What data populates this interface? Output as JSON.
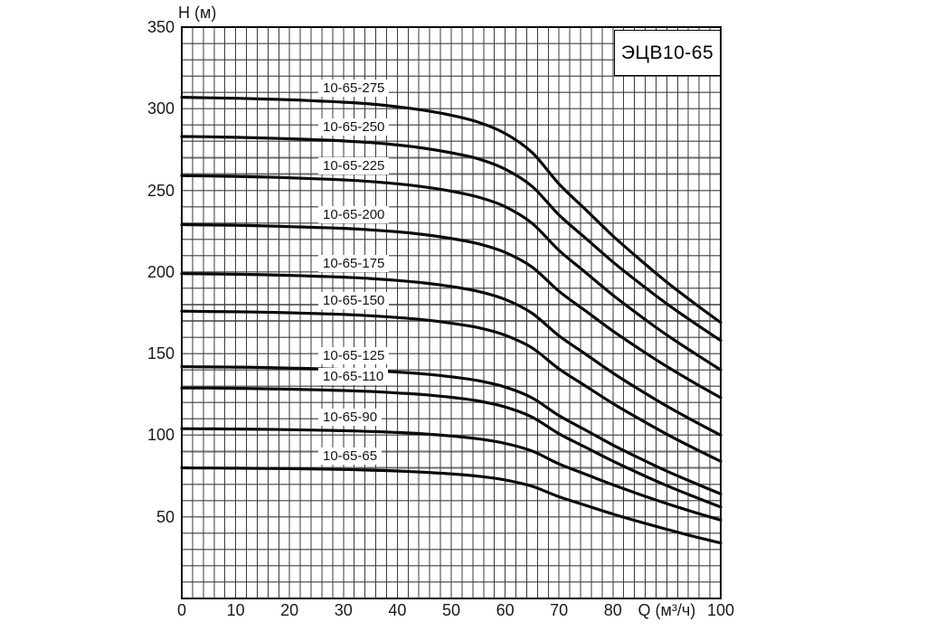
{
  "chart_data": {
    "type": "line",
    "title": "ЭЦВ10-65",
    "xlabel": "Q (м³/ч)",
    "ylabel": "Н (м)",
    "xlim": [
      0,
      100
    ],
    "ylim": [
      0,
      350
    ],
    "grid": {
      "on": true,
      "x_minor_step": 2,
      "y_minor_step": 10
    },
    "legend_position": "labels-on-curves",
    "x_ticks": [
      {
        "v": 0,
        "label": "0"
      },
      {
        "v": 10,
        "label": "10"
      },
      {
        "v": 20,
        "label": "20"
      },
      {
        "v": 30,
        "label": "30"
      },
      {
        "v": 40,
        "label": "40"
      },
      {
        "v": 50,
        "label": "50"
      },
      {
        "v": 60,
        "label": "60"
      },
      {
        "v": 70,
        "label": "70"
      },
      {
        "v": 80,
        "label": "80"
      },
      {
        "v": 90,
        "label": "Q (м³/ч)"
      },
      {
        "v": 100,
        "label": "100"
      }
    ],
    "y_ticks": [
      {
        "v": 350,
        "label": "350"
      },
      {
        "v": 300,
        "label": "300"
      },
      {
        "v": 250,
        "label": "250"
      },
      {
        "v": 200,
        "label": "200"
      },
      {
        "v": 150,
        "label": "150"
      },
      {
        "v": 100,
        "label": "100"
      },
      {
        "v": 50,
        "label": "50"
      }
    ],
    "x": [
      0,
      5,
      10,
      15,
      20,
      25,
      30,
      35,
      40,
      45,
      50,
      55,
      60,
      65,
      70,
      75,
      80,
      85,
      90,
      95,
      100
    ],
    "series": [
      {
        "name": "10-65-275",
        "values": [
          307,
          306.7,
          306.4,
          306,
          305.5,
          304.8,
          304,
          302.9,
          301.2,
          299,
          296,
          291.8,
          284.9,
          273.2,
          253.9,
          238,
          222.1,
          207.6,
          193.8,
          181.1,
          169
        ]
      },
      {
        "name": "10-65-250",
        "values": [
          283,
          282.8,
          282.5,
          282.1,
          281.6,
          281,
          280.3,
          279.3,
          277.8,
          275.8,
          273,
          269.3,
          263,
          252.4,
          234.9,
          220.5,
          206.1,
          193,
          180.5,
          169,
          158
        ]
      },
      {
        "name": "10-65-225",
        "values": [
          259,
          258.8,
          258.5,
          258.2,
          257.7,
          257.1,
          256.4,
          255.4,
          254,
          252.1,
          249.5,
          245.9,
          240,
          229.8,
          213.2,
          199.5,
          185.8,
          173.3,
          161.4,
          150.5,
          140
        ]
      },
      {
        "name": "10-65-200",
        "values": [
          229,
          228.8,
          228.6,
          228.3,
          227.8,
          227.3,
          226.7,
          225.8,
          224.6,
          222.9,
          220.5,
          217.3,
          212,
          203,
          188.2,
          176,
          163.8,
          152.7,
          142.1,
          132.3,
          123
        ]
      },
      {
        "name": "10-65-175",
        "values": [
          199,
          198.8,
          198.6,
          198.3,
          197.9,
          197.4,
          196.8,
          196,
          194.8,
          193.3,
          191.1,
          188.1,
          183.2,
          174.7,
          160.9,
          149.5,
          138.1,
          127.7,
          117.8,
          108.7,
          100
        ]
      },
      {
        "name": "10-65-150",
        "values": [
          176,
          175.8,
          175.6,
          175.4,
          175,
          174.5,
          174,
          173.2,
          172.1,
          170.7,
          168.6,
          165.9,
          161.3,
          153.5,
          140.6,
          130,
          119.4,
          109.8,
          100.6,
          92.1,
          84
        ]
      },
      {
        "name": "10-65-125",
        "values": [
          142,
          141.8,
          141.7,
          141.5,
          141.1,
          140.8,
          140.3,
          139.7,
          138.7,
          137.5,
          135.8,
          133.4,
          129.5,
          122.9,
          112,
          103,
          94,
          85.8,
          78,
          70.9,
          64
        ]
      },
      {
        "name": "10-65-110",
        "values": [
          129,
          128.9,
          128.7,
          128.5,
          128.2,
          127.8,
          127.4,
          126.8,
          125.9,
          124.8,
          123.2,
          121,
          117.3,
          111.1,
          100.9,
          92.5,
          84.1,
          76.4,
          69.1,
          62.4,
          56
        ]
      },
      {
        "name": "10-65-90",
        "values": [
          104,
          103.9,
          103.8,
          103.6,
          103.4,
          103.1,
          102.8,
          102.3,
          101.7,
          100.8,
          99.5,
          97.8,
          95,
          90.3,
          82.4,
          76,
          69.6,
          63.7,
          58.1,
          52.9,
          48
        ]
      },
      {
        "name": "10-65-65",
        "values": [
          80,
          79.9,
          79.8,
          79.7,
          79.5,
          79.3,
          79,
          78.6,
          78.1,
          77.3,
          76.3,
          74.9,
          72.6,
          68.7,
          62.3,
          57,
          51.7,
          46.9,
          42.3,
          38,
          34
        ]
      }
    ],
    "colors": {
      "curve": "#0a0a0a",
      "grid_vertical": "#3a3a3a",
      "grid_horizontal": "#6e6e6e",
      "border": "#000000",
      "background": "#ffffff"
    }
  }
}
